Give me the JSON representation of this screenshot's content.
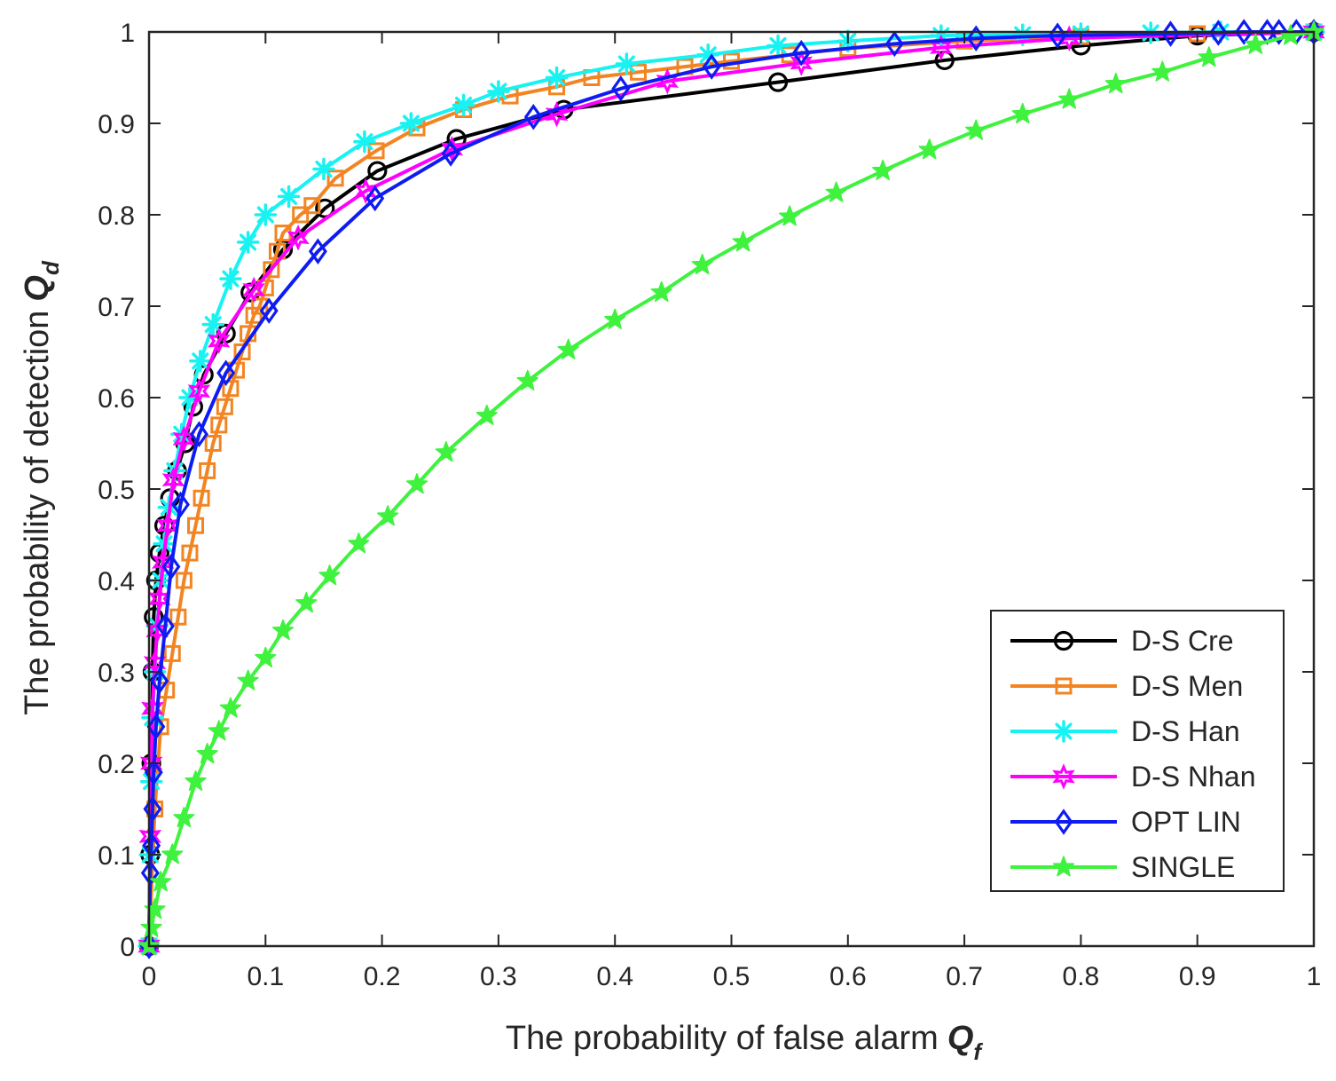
{
  "chart_data": {
    "type": "line",
    "title": "",
    "xlabel": "The probability of false alarm",
    "xlabel_symbol": "Q",
    "xlabel_subscript": "f",
    "ylabel": "The probability of detection",
    "ylabel_symbol": "Q",
    "ylabel_subscript": "d",
    "xlim": [
      0,
      1
    ],
    "ylim": [
      0,
      1
    ],
    "xticks": [
      "0",
      "0.1",
      "0.2",
      "0.3",
      "0.4",
      "0.5",
      "0.6",
      "0.7",
      "0.8",
      "0.9",
      "1"
    ],
    "yticks": [
      "0",
      "0.1",
      "0.2",
      "0.3",
      "0.4",
      "0.5",
      "0.6",
      "0.7",
      "0.8",
      "0.9",
      "1"
    ],
    "grid": false,
    "legend_position": "bottom-right",
    "series": [
      {
        "name": "D-S Cre",
        "color": "#000000",
        "marker": "circle",
        "x": [
          0,
          0.001,
          0.002,
          0.003,
          0.004,
          0.006,
          0.009,
          0.013,
          0.018,
          0.024,
          0.031,
          0.038,
          0.047,
          0.066,
          0.087,
          0.115,
          0.151,
          0.196,
          0.264,
          0.356,
          0.54,
          0.683,
          0.8,
          0.9,
          1
        ],
        "y": [
          0,
          0.1,
          0.2,
          0.3,
          0.36,
          0.4,
          0.43,
          0.46,
          0.49,
          0.52,
          0.55,
          0.59,
          0.625,
          0.67,
          0.715,
          0.762,
          0.807,
          0.848,
          0.883,
          0.915,
          0.945,
          0.969,
          0.985,
          0.996,
          1.0
        ]
      },
      {
        "name": "D-S Men",
        "color": "#f28522",
        "marker": "square",
        "x": [
          0,
          0.005,
          0.01,
          0.015,
          0.02,
          0.025,
          0.03,
          0.035,
          0.04,
          0.045,
          0.05,
          0.055,
          0.06,
          0.065,
          0.07,
          0.075,
          0.08,
          0.085,
          0.09,
          0.095,
          0.1,
          0.105,
          0.11,
          0.115,
          0.13,
          0.14,
          0.16,
          0.195,
          0.23,
          0.27,
          0.31,
          0.35,
          0.38,
          0.42,
          0.46,
          0.5,
          0.55,
          0.6,
          0.7,
          0.8,
          0.9,
          1
        ],
        "y": [
          0,
          0.15,
          0.24,
          0.28,
          0.32,
          0.36,
          0.4,
          0.43,
          0.46,
          0.49,
          0.52,
          0.55,
          0.57,
          0.59,
          0.61,
          0.63,
          0.65,
          0.67,
          0.69,
          0.7,
          0.72,
          0.74,
          0.76,
          0.78,
          0.8,
          0.81,
          0.84,
          0.87,
          0.895,
          0.915,
          0.93,
          0.94,
          0.95,
          0.956,
          0.962,
          0.968,
          0.975,
          0.982,
          0.99,
          0.995,
          0.998,
          1.0
        ]
      },
      {
        "name": "D-S Han",
        "color": "#18f2f2",
        "marker": "asterisk",
        "x": [
          0,
          0.001,
          0.002,
          0.003,
          0.005,
          0.007,
          0.01,
          0.013,
          0.017,
          0.022,
          0.028,
          0.035,
          0.044,
          0.055,
          0.07,
          0.085,
          0.1,
          0.12,
          0.15,
          0.185,
          0.225,
          0.27,
          0.3,
          0.35,
          0.41,
          0.48,
          0.54,
          0.6,
          0.68,
          0.75,
          0.8,
          0.86,
          0.92,
          1
        ],
        "y": [
          0,
          0.1,
          0.18,
          0.25,
          0.3,
          0.35,
          0.4,
          0.44,
          0.48,
          0.52,
          0.56,
          0.6,
          0.64,
          0.68,
          0.73,
          0.77,
          0.8,
          0.82,
          0.85,
          0.88,
          0.9,
          0.92,
          0.935,
          0.95,
          0.965,
          0.975,
          0.985,
          0.99,
          0.996,
          0.997,
          0.998,
          0.999,
          1.0,
          1.0
        ]
      },
      {
        "name": "D-S Nhan",
        "color": "#ff00ff",
        "marker": "star6",
        "x": [
          0,
          0.001,
          0.002,
          0.003,
          0.005,
          0.007,
          0.009,
          0.012,
          0.016,
          0.021,
          0.03,
          0.043,
          0.06,
          0.09,
          0.128,
          0.186,
          0.26,
          0.35,
          0.445,
          0.56,
          0.68,
          0.79,
          1
        ],
        "y": [
          0,
          0.12,
          0.2,
          0.26,
          0.31,
          0.345,
          0.38,
          0.42,
          0.46,
          0.51,
          0.555,
          0.607,
          0.662,
          0.718,
          0.775,
          0.826,
          0.872,
          0.91,
          0.946,
          0.966,
          0.983,
          0.993,
          1.0
        ]
      },
      {
        "name": "OPT LIN",
        "color": "#0e1cf2",
        "marker": "diamond",
        "x": [
          0,
          0.001,
          0.002,
          0.003,
          0.004,
          0.006,
          0.009,
          0.014,
          0.019,
          0.027,
          0.043,
          0.066,
          0.103,
          0.145,
          0.194,
          0.259,
          0.33,
          0.405,
          0.483,
          0.56,
          0.64,
          0.71,
          0.78,
          0.877,
          0.918,
          0.94,
          0.96,
          0.97,
          0.985,
          1
        ],
        "y": [
          0,
          0.08,
          0.11,
          0.15,
          0.19,
          0.24,
          0.29,
          0.35,
          0.415,
          0.483,
          0.56,
          0.627,
          0.695,
          0.76,
          0.818,
          0.867,
          0.907,
          0.938,
          0.962,
          0.977,
          0.987,
          0.993,
          0.996,
          0.998,
          0.999,
          1.0,
          1.0,
          1.0,
          1.0,
          1.0
        ]
      },
      {
        "name": "SINGLE",
        "color": "#3ef23e",
        "marker": "star5",
        "x": [
          0,
          0.002,
          0.005,
          0.01,
          0.02,
          0.03,
          0.04,
          0.05,
          0.06,
          0.07,
          0.085,
          0.1,
          0.115,
          0.135,
          0.155,
          0.18,
          0.205,
          0.23,
          0.255,
          0.29,
          0.325,
          0.36,
          0.4,
          0.44,
          0.475,
          0.51,
          0.55,
          0.59,
          0.63,
          0.67,
          0.71,
          0.75,
          0.79,
          0.83,
          0.87,
          0.91,
          0.95,
          0.98,
          1
        ],
        "y": [
          0,
          0.02,
          0.04,
          0.07,
          0.1,
          0.14,
          0.18,
          0.21,
          0.235,
          0.26,
          0.29,
          0.315,
          0.345,
          0.375,
          0.405,
          0.44,
          0.47,
          0.505,
          0.54,
          0.58,
          0.618,
          0.652,
          0.685,
          0.715,
          0.745,
          0.77,
          0.798,
          0.824,
          0.848,
          0.871,
          0.892,
          0.91,
          0.926,
          0.943,
          0.956,
          0.972,
          0.986,
          0.996,
          1.0
        ]
      }
    ]
  }
}
